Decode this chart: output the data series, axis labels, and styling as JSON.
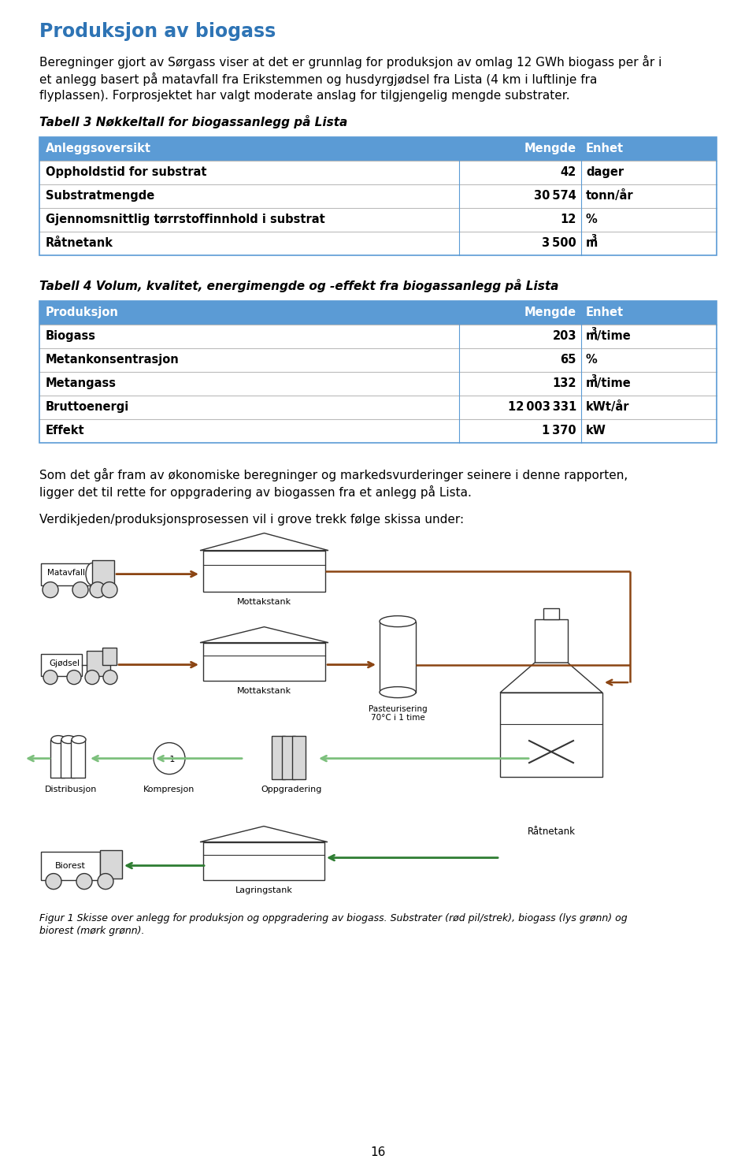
{
  "title": "Produksjon av biogass",
  "title_color": "#2E74B5",
  "body_text_line1": "Beregninger gjort av Sørgass viser at det er grunnlag for produksjon av omlag 12 GWh biogass per år i",
  "body_text_line2": "et anlegg basert på matavfall fra Erikstemmen og husdyrgjødsel fra Lista (4 km i luftlinje fra",
  "body_text_line3": "flyplassen). Forprosjektet har valgt moderate anslag for tilgjengelig mengde substrater.",
  "table3_caption": "Tabell 3 Nøkkeltall for biogassanlegg på Lista",
  "table3_header": [
    "Anleggsoversikt",
    "Mengde",
    "Enhet"
  ],
  "table3_rows": [
    [
      "Oppholdstid for substrat",
      "42",
      "dager"
    ],
    [
      "Substratmengde",
      "30 574",
      "tonn/år"
    ],
    [
      "Gjennomsnittlig tørrstoffinnhold i substrat",
      "12",
      "%"
    ],
    [
      "Råtnetank",
      "3 500",
      "m^3"
    ]
  ],
  "table4_caption": "Tabell 4 Volum, kvalitet, energimengde og -effekt fra biogassanlegg på Lista",
  "table4_header": [
    "Produksjon",
    "Mengde",
    "Enhet"
  ],
  "table4_rows": [
    [
      "Biogass",
      "203",
      "m^3/time"
    ],
    [
      "Metankonsentrasjon",
      "65",
      "%"
    ],
    [
      "Metangass",
      "132",
      "m^3/time"
    ],
    [
      "Bruttoenergi",
      "12 003 331",
      "kWt/år"
    ],
    [
      "Effekt",
      "1 370",
      "kW"
    ]
  ],
  "paragraph2_line1": "Som det går fram av økonomiske beregninger og markedsvurderinger seinere i denne rapporten,",
  "paragraph2_line2": "ligger det til rette for oppgradering av biogassen fra et anlegg på Lista.",
  "paragraph3": "Verdikjeden/produksjonsprosessen vil i grove trekk følge skissa under:",
  "fig_caption_line1": "Figur 1 Skisse over anlegg for produksjon og oppgradering av biogass. Substrater (rød pil/strek), biogass (lys grønn) og",
  "fig_caption_line2": "biorest (mørk grønn).",
  "page_number": "16",
  "header_bg_color": "#5B9BD5",
  "header_text_color": "#FFFFFF",
  "row_sep_color": "#BBBBBB",
  "table_border_color": "#5B9BD5"
}
